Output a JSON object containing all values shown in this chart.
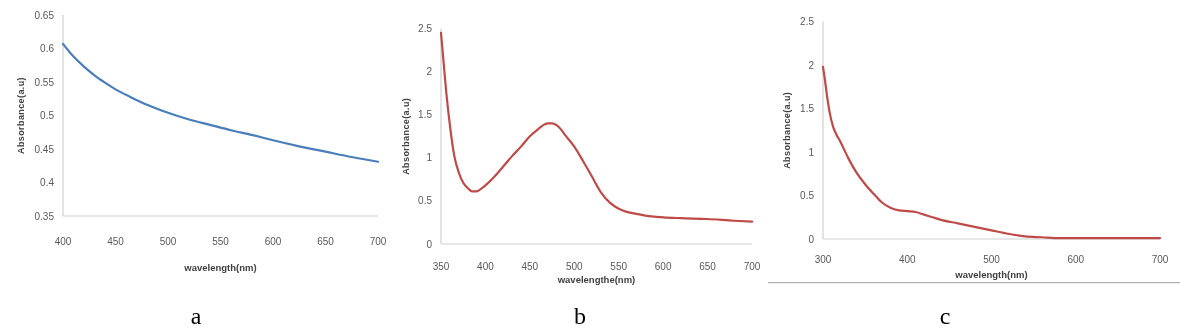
{
  "chart_data": [
    {
      "type": "line",
      "xlabel": "wavelength(nm)",
      "ylabel": "Absorbance(a.u)",
      "annotations": [
        "a"
      ],
      "xlim": [
        400,
        700
      ],
      "ylim": [
        0.35,
        0.65
      ],
      "xticks": [
        400,
        450,
        500,
        550,
        600,
        650,
        700
      ],
      "yticks": [
        0.35,
        0.4,
        0.45,
        0.5,
        0.55,
        0.6,
        0.65
      ],
      "series": [
        {
          "color": "#4a7ebb",
          "x": [
            400,
            410,
            420,
            430,
            440,
            450,
            465,
            480,
            500,
            520,
            540,
            560,
            580,
            600,
            625,
            650,
            675,
            700
          ],
          "values": [
            0.607,
            0.588,
            0.573,
            0.56,
            0.549,
            0.539,
            0.527,
            0.516,
            0.504,
            0.494,
            0.486,
            0.478,
            0.471,
            0.463,
            0.454,
            0.446,
            0.438,
            0.431
          ]
        }
      ]
    },
    {
      "type": "line",
      "xlabel": "wavelengthe(nm)",
      "ylabel": "Absorbance(a.u)",
      "annotations": [
        "b"
      ],
      "xlim": [
        350,
        700
      ],
      "ylim": [
        0,
        2.5
      ],
      "xticks": [
        350,
        400,
        450,
        500,
        550,
        600,
        650,
        700
      ],
      "yticks": [
        0,
        0.5,
        1,
        1.5,
        2,
        2.5
      ],
      "series": [
        {
          "color": "#be4b48",
          "x": [
            350,
            353,
            356,
            360,
            365,
            370,
            375,
            380,
            385,
            390,
            395,
            400,
            410,
            420,
            430,
            440,
            450,
            460,
            465,
            470,
            475,
            480,
            485,
            490,
            500,
            510,
            520,
            530,
            540,
            550,
            560,
            570,
            580,
            600,
            620,
            650,
            680,
            700
          ],
          "values": [
            2.45,
            2.1,
            1.75,
            1.38,
            1.02,
            0.83,
            0.71,
            0.65,
            0.61,
            0.61,
            0.64,
            0.68,
            0.78,
            0.9,
            1.02,
            1.13,
            1.25,
            1.34,
            1.38,
            1.4,
            1.4,
            1.38,
            1.33,
            1.26,
            1.13,
            0.96,
            0.78,
            0.6,
            0.48,
            0.41,
            0.37,
            0.35,
            0.33,
            0.31,
            0.3,
            0.29,
            0.27,
            0.26
          ]
        }
      ]
    },
    {
      "type": "line",
      "xlabel": "wavelength(nm)",
      "ylabel": "Absorbance(a.u)",
      "annotations": [
        "c"
      ],
      "xlim": [
        300,
        700
      ],
      "ylim": [
        0,
        2.5
      ],
      "xticks": [
        300,
        400,
        500,
        600,
        700
      ],
      "yticks": [
        0,
        0.5,
        1,
        1.5,
        2,
        2.5
      ],
      "series": [
        {
          "color": "#be4b48",
          "x": [
            300,
            302,
            305,
            308,
            312,
            316,
            320,
            330,
            340,
            350,
            360,
            370,
            380,
            390,
            400,
            410,
            420,
            430,
            440,
            460,
            480,
            500,
            520,
            540,
            560,
            580,
            600,
            650,
            700
          ],
          "values": [
            1.98,
            1.85,
            1.63,
            1.45,
            1.29,
            1.2,
            1.13,
            0.93,
            0.76,
            0.63,
            0.52,
            0.42,
            0.36,
            0.33,
            0.32,
            0.31,
            0.28,
            0.25,
            0.22,
            0.18,
            0.14,
            0.1,
            0.06,
            0.03,
            0.02,
            0.01,
            0.01,
            0.01,
            0.01
          ]
        }
      ]
    }
  ]
}
